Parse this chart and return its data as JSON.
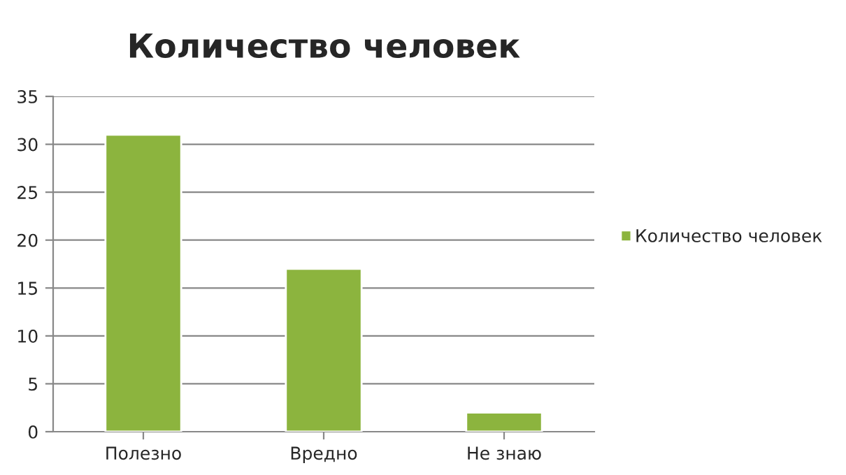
{
  "chart_data": {
    "type": "bar",
    "title": "Количество человек",
    "categories": [
      "Полезно",
      "Вредно",
      "Не знаю"
    ],
    "series": [
      {
        "name": "Количество человек",
        "color": "#8cb43e",
        "values": [
          31,
          17,
          2
        ]
      }
    ],
    "ylim": [
      0,
      35
    ],
    "yticks": [
      0,
      5,
      10,
      15,
      20,
      25,
      30,
      35
    ],
    "grid": "y",
    "legend": "right"
  }
}
